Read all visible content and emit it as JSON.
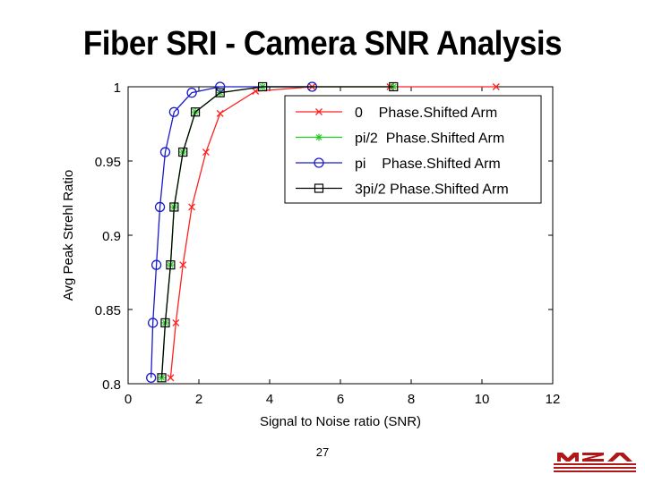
{
  "slide": {
    "title": "Fiber SRI - Camera SNR Analysis",
    "page_number": "27",
    "logo_text": "MZA"
  },
  "chart_data": {
    "type": "line",
    "title": "",
    "xlabel": "Signal to Noise ratio (SNR)",
    "ylabel": "Avg Peak Strehl Ratio",
    "xlim": [
      0,
      12
    ],
    "ylim": [
      0.8,
      1
    ],
    "xticks": [
      0,
      2,
      4,
      6,
      8,
      10,
      12
    ],
    "yticks": [
      0.8,
      0.85,
      0.9,
      0.95,
      1
    ],
    "ytick_labels": [
      "0.8",
      "0.85",
      "0.9",
      "0.95",
      "1"
    ],
    "grid": false,
    "legend_position": "top-right",
    "series": [
      {
        "name": "0    Phase.Shifted Arm",
        "color": "#ff2020",
        "marker": "x",
        "x": [
          1.2,
          1.35,
          1.55,
          1.8,
          2.2,
          2.6,
          3.6,
          5.2,
          7.4,
          10.4
        ],
        "y": [
          0.804,
          0.841,
          0.88,
          0.919,
          0.956,
          0.982,
          0.997,
          1.0,
          1.0,
          1.0
        ]
      },
      {
        "name": "pi/2  Phase.Shifted Arm",
        "color": "#22cc22",
        "marker": "*",
        "x": [
          0.95,
          1.05,
          1.2,
          1.3,
          1.55,
          1.9,
          2.6,
          3.8,
          7.5
        ],
        "y": [
          0.804,
          0.841,
          0.88,
          0.919,
          0.956,
          0.983,
          0.996,
          1.0,
          1.0
        ]
      },
      {
        "name": "pi    Phase.Shifted Arm",
        "color": "#1a1acc",
        "marker": "o",
        "x": [
          0.65,
          0.7,
          0.8,
          0.9,
          1.05,
          1.3,
          1.8,
          2.6,
          5.2
        ],
        "y": [
          0.804,
          0.841,
          0.88,
          0.919,
          0.956,
          0.983,
          0.996,
          1.0,
          1.0
        ]
      },
      {
        "name": "3pi/2 Phase.Shifted Arm",
        "color": "#000000",
        "marker": "square",
        "x": [
          0.95,
          1.05,
          1.2,
          1.3,
          1.55,
          1.9,
          2.6,
          3.8,
          7.5
        ],
        "y": [
          0.804,
          0.841,
          0.88,
          0.919,
          0.956,
          0.983,
          0.996,
          1.0,
          1.0
        ]
      }
    ]
  }
}
